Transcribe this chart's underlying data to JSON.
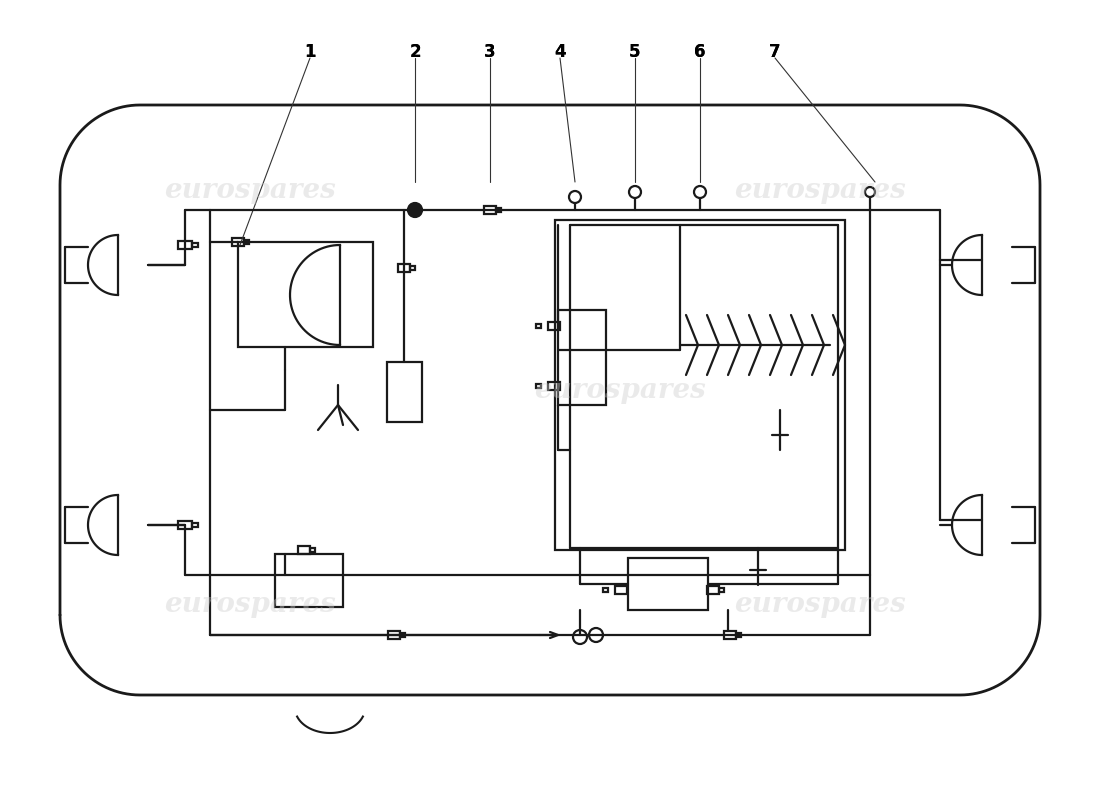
{
  "bg_color": "#ffffff",
  "line_color": "#1a1a1a",
  "wc": "#cccccc",
  "part_numbers": [
    "1",
    "2",
    "3",
    "4",
    "5",
    "6",
    "7"
  ],
  "pn_x": [
    310,
    415,
    490,
    560,
    635,
    700,
    775
  ],
  "pn_y": [
    748,
    748,
    748,
    748,
    748,
    748,
    748
  ],
  "watermarks": [
    [
      250,
      610,
      "eurospares"
    ],
    [
      250,
      195,
      "eurospares"
    ],
    [
      620,
      410,
      "eurospares"
    ],
    [
      820,
      610,
      "eurospares"
    ],
    [
      820,
      195,
      "eurospares"
    ]
  ]
}
